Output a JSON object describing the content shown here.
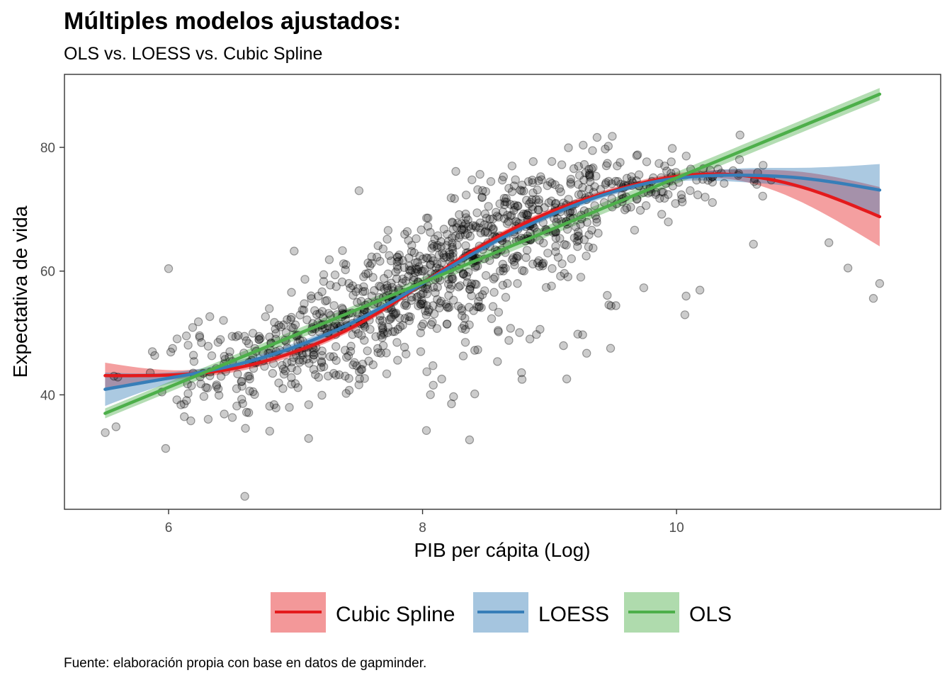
{
  "chart_data": {
    "type": "scatter",
    "title": "Múltiples modelos ajustados:",
    "subtitle": "OLS vs. LOESS vs. Cubic Spline",
    "xlabel": "PIB per cápita (Log)",
    "ylabel": "Expectativa de vida",
    "caption": "Fuente: elaboración propia con base en datos de gapminder.",
    "xlim": [
      5.18,
      12.08
    ],
    "ylim": [
      21.5,
      91.8
    ],
    "x_ticks": [
      6,
      8,
      10
    ],
    "y_ticks": [
      40,
      60,
      80
    ],
    "grid": false,
    "legend_position": "bottom",
    "colors": {
      "points": "#000000",
      "cubic_spline": "#e41a1c",
      "loess": "#377eb8",
      "ols": "#4daf4a",
      "panel_border": "#333333",
      "tick_text": "#4d4d4d"
    },
    "points_summary": {
      "description_count": 1704,
      "x_range": [
        5.5,
        11.6
      ],
      "y_range": [
        23.6,
        82.6
      ],
      "notable_points": [
        {
          "x": 6.6,
          "y": 23.6
        },
        {
          "x": 6.0,
          "y": 60.4
        },
        {
          "x": 7.5,
          "y": 73.0
        },
        {
          "x": 11.6,
          "y": 58.0
        },
        {
          "x": 11.55,
          "y": 55.6
        },
        {
          "x": 11.35,
          "y": 60.5
        },
        {
          "x": 11.2,
          "y": 64.6
        },
        {
          "x": 10.5,
          "y": 82.0
        }
      ]
    },
    "series": [
      {
        "name": "Cubic Spline",
        "color": "#e41a1c",
        "x": [
          5.5,
          6.0,
          6.5,
          7.0,
          7.5,
          8.0,
          8.5,
          9.0,
          9.5,
          10.0,
          10.5,
          11.0,
          11.6
        ],
        "y": [
          43.1,
          43.2,
          44.2,
          47.0,
          51.5,
          58.0,
          64.5,
          69.5,
          73.0,
          75.3,
          75.5,
          73.5,
          68.8
        ],
        "ci_low": [
          41.0,
          42.4,
          43.6,
          46.4,
          51.0,
          57.5,
          64.0,
          69.0,
          72.5,
          74.8,
          74.6,
          71.0,
          64.0
        ],
        "ci_high": [
          45.2,
          44.0,
          44.8,
          47.6,
          52.0,
          58.5,
          65.0,
          70.0,
          73.5,
          75.8,
          76.4,
          76.0,
          73.6
        ]
      },
      {
        "name": "LOESS",
        "color": "#377eb8",
        "x": [
          5.5,
          6.0,
          6.5,
          7.0,
          7.5,
          8.0,
          8.5,
          9.0,
          9.5,
          10.0,
          10.5,
          11.0,
          11.6
        ],
        "y": [
          40.9,
          42.7,
          44.7,
          47.8,
          52.2,
          58.0,
          64.0,
          69.0,
          72.8,
          75.0,
          75.5,
          75.0,
          73.1
        ],
        "ci_low": [
          38.2,
          41.8,
          44.1,
          47.2,
          51.7,
          57.5,
          63.5,
          68.5,
          72.3,
          74.5,
          74.4,
          73.3,
          69.0
        ],
        "ci_high": [
          43.6,
          43.6,
          45.3,
          48.4,
          52.7,
          58.5,
          64.5,
          69.5,
          73.3,
          75.5,
          76.6,
          76.7,
          77.3
        ]
      },
      {
        "name": "OLS",
        "color": "#4daf4a",
        "x": [
          5.5,
          11.6
        ],
        "y": [
          37.0,
          88.6
        ],
        "ci_low": [
          36.2,
          87.6
        ],
        "ci_high": [
          37.8,
          89.6
        ]
      }
    ]
  }
}
